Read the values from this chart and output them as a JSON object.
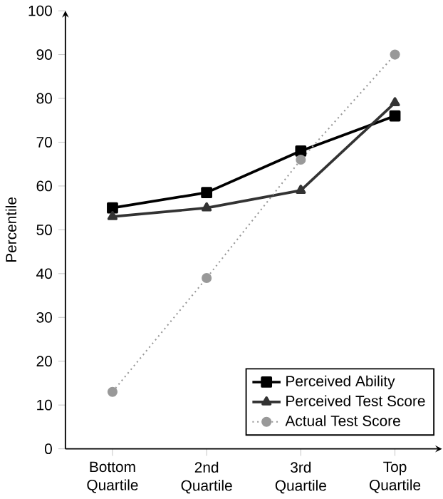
{
  "chart_data": {
    "type": "line",
    "ylabel": "Percentile",
    "categories": [
      "Bottom Quartile",
      "2nd Quartile",
      "3rd Quartile",
      "Top Quartile"
    ],
    "series": [
      {
        "name": "Perceived Ability",
        "color": "#000000",
        "marker": "square",
        "line_style": "solid",
        "values": [
          55,
          58.5,
          68,
          76
        ]
      },
      {
        "name": "Perceived Test Score",
        "color": "#333333",
        "marker": "triangle",
        "line_style": "solid",
        "values": [
          53,
          55,
          59,
          79
        ]
      },
      {
        "name": "Actual Test Score",
        "color": "#999999",
        "marker": "circle",
        "line_style": "dotted",
        "values": [
          13,
          39,
          66,
          90
        ]
      }
    ],
    "ylim": [
      0,
      100
    ],
    "yticks": [
      0,
      10,
      20,
      30,
      40,
      50,
      60,
      70,
      80,
      90,
      100
    ],
    "grid": false,
    "legend": "bottom right"
  }
}
